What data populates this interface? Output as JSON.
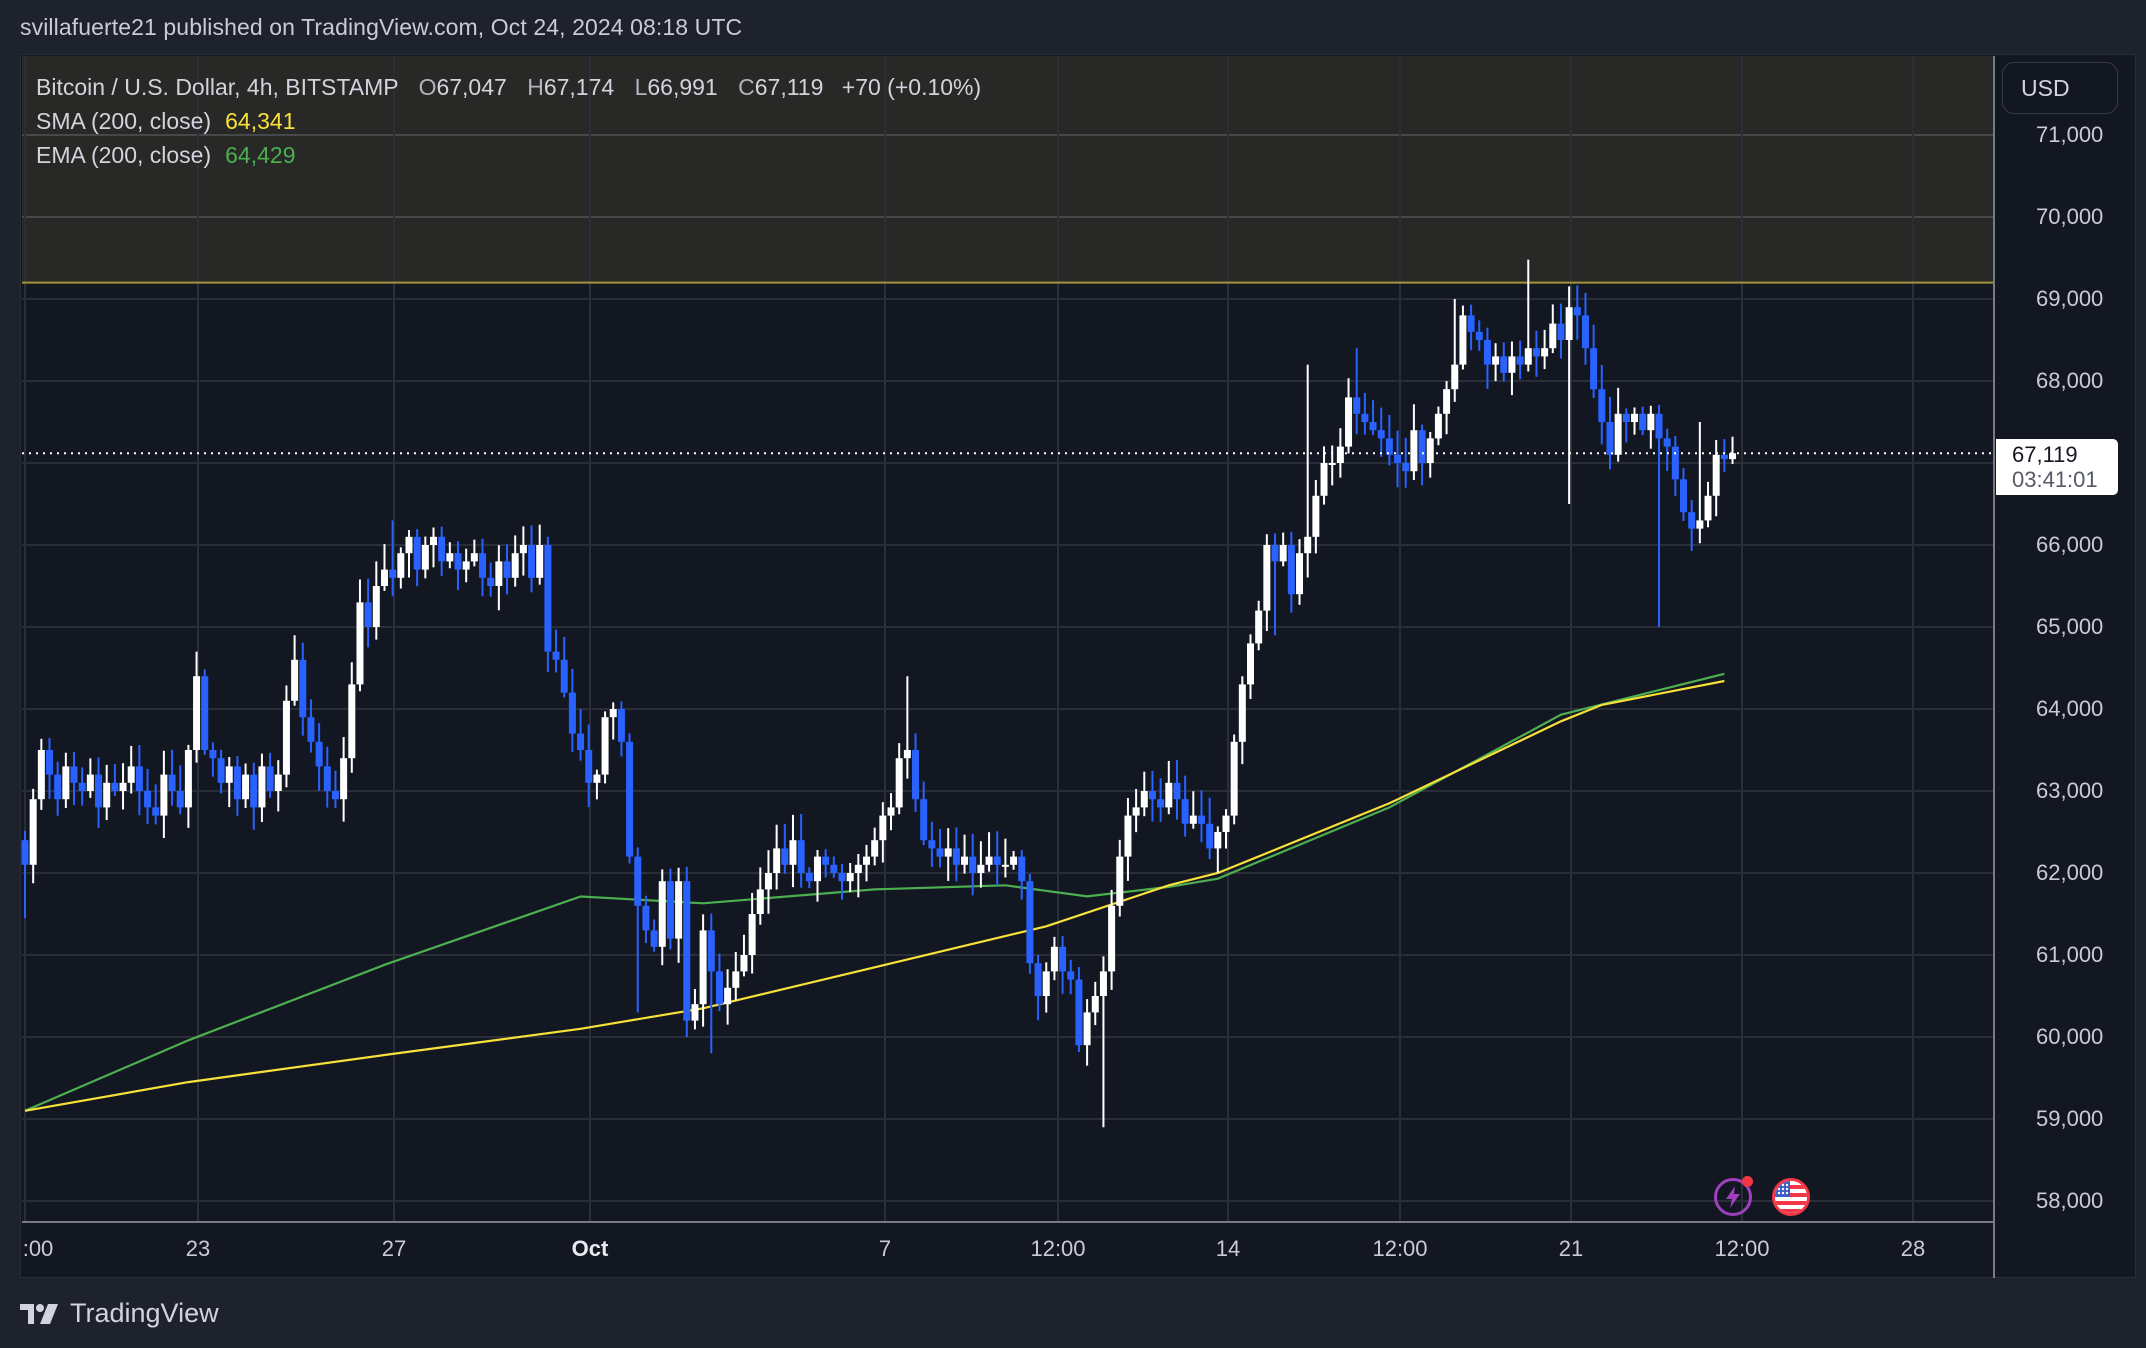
{
  "header": {
    "publish_text": "svillafuerte21 published on TradingView.com, Oct 24, 2024 08:18 UTC"
  },
  "legend": {
    "symbol": "Bitcoin / U.S. Dollar, 4h, BITSTAMP",
    "open_key": "O",
    "open": "67,047",
    "high_key": "H",
    "high": "67,174",
    "low_key": "L",
    "low": "66,991",
    "close_key": "C",
    "close": "67,119",
    "change": "+70 (+0.10%)",
    "sma_label": "SMA (200, close)",
    "sma_value": "64,341",
    "ema_label": "EMA (200, close)",
    "ema_value": "64,429"
  },
  "price_axis": {
    "currency_button": "USD",
    "labels": [
      "71,000",
      "70,000",
      "69,000",
      "68,000",
      "67,000",
      "66,000",
      "65,000",
      "64,000",
      "63,000",
      "62,000",
      "61,000",
      "60,000",
      "59,000",
      "58,000"
    ],
    "last_price": "67,119",
    "countdown": "03:41:01"
  },
  "time_axis": {
    "labels": [
      {
        "text": ":00",
        "bold": false
      },
      {
        "text": "23",
        "bold": false
      },
      {
        "text": "27",
        "bold": false
      },
      {
        "text": "Oct",
        "bold": true
      },
      {
        "text": "7",
        "bold": false
      },
      {
        "text": "12:00",
        "bold": false
      },
      {
        "text": "14",
        "bold": false
      },
      {
        "text": "12:00",
        "bold": false
      },
      {
        "text": "21",
        "bold": false
      },
      {
        "text": "12:00",
        "bold": false
      },
      {
        "text": "28",
        "bold": false
      }
    ]
  },
  "footer": {
    "brand": "TradingView"
  },
  "icons": {
    "event_1": "lightning-event-icon",
    "event_2": "us-flag-event-icon"
  },
  "colors": {
    "background": "#131722",
    "up_candle": "#ffffff",
    "down_candle": "#2962ff",
    "sma": "#f7e13a",
    "ema": "#4caf50",
    "resistance_line": "#a39339",
    "resistance_zone": "#282826",
    "grid": "#2a2e39"
  },
  "chart_data": {
    "type": "candlestick",
    "title": "Bitcoin / U.S. Dollar, 4h, BITSTAMP",
    "interval": "4h",
    "xlabel": "",
    "ylabel": "USD",
    "ylim": [
      57700,
      71700
    ],
    "grid": true,
    "legend_position": "top-left",
    "x_tick_labels": [
      ":00",
      "23",
      "27",
      "Oct",
      "7",
      "12:00",
      "14",
      "12:00",
      "21",
      "12:00",
      "28"
    ],
    "y_tick_labels": [
      71000,
      70000,
      69000,
      68000,
      67000,
      66000,
      65000,
      64000,
      63000,
      62000,
      61000,
      60000,
      59000,
      58000
    ],
    "ohlc_current": {
      "open": 67047,
      "high": 67174,
      "low": 66991,
      "close": 67119,
      "change": 70,
      "change_pct": 0.1
    },
    "resistance_zone": {
      "from": 69200,
      "to": 71700
    },
    "closes": [
      62100,
      62900,
      63500,
      63200,
      62900,
      63300,
      63100,
      63000,
      63200,
      62800,
      63100,
      63000,
      63100,
      63300,
      63000,
      62800,
      62700,
      63200,
      63000,
      62800,
      63500,
      64400,
      63500,
      63400,
      63100,
      63300,
      62900,
      63200,
      62800,
      63300,
      63000,
      63200,
      64100,
      64600,
      63900,
      63600,
      63300,
      63000,
      62900,
      63400,
      64300,
      65300,
      65000,
      65500,
      65700,
      65600,
      65900,
      66100,
      65700,
      66000,
      66100,
      65800,
      65900,
      65700,
      65800,
      65900,
      65600,
      65500,
      65800,
      65600,
      65900,
      66000,
      65600,
      66000,
      64700,
      64600,
      64200,
      63700,
      63500,
      63100,
      63200,
      63900,
      64000,
      63600,
      62200,
      61600,
      61300,
      61100,
      61900,
      61200,
      61900,
      60200,
      60400,
      61300,
      60800,
      60400,
      60600,
      60800,
      61000,
      61500,
      61800,
      62000,
      62300,
      62100,
      62400,
      62000,
      61900,
      62200,
      62100,
      62000,
      61900,
      62000,
      62100,
      62200,
      62400,
      62700,
      62800,
      63400,
      63500,
      62900,
      62400,
      62300,
      62200,
      62300,
      62100,
      62200,
      62000,
      62100,
      62200,
      62100,
      62100,
      62200,
      61900,
      60900,
      60500,
      60800,
      61100,
      60800,
      60700,
      59900,
      60300,
      60500,
      60800,
      61600,
      62200,
      62700,
      62800,
      63000,
      62900,
      62800,
      63100,
      62900,
      62600,
      62700,
      62600,
      62300,
      62500,
      62700,
      63600,
      64300,
      64800,
      65200,
      66000,
      65800,
      66000,
      65400,
      65900,
      66100,
      66600,
      67000,
      67000,
      67200,
      67800,
      67600,
      67500,
      67400,
      67300,
      67100,
      67000,
      66900,
      67400,
      67000,
      67300,
      67600,
      67900,
      68200,
      68800,
      68600,
      68500,
      68200,
      68300,
      68100,
      68300,
      68200,
      68400,
      68300,
      68400,
      68700,
      68500,
      68900,
      68800,
      68400,
      67900,
      67500,
      67100,
      67600,
      67500,
      67600,
      67400,
      67600,
      67300,
      67200,
      66800,
      66400,
      66200,
      66300,
      66600,
      67100,
      67047,
      67119
    ],
    "wick_extremes": [
      {
        "index": 0,
        "low": 61450
      },
      {
        "index": 21,
        "high": 64700
      },
      {
        "index": 33,
        "high": 64900
      },
      {
        "index": 45,
        "high": 66300
      },
      {
        "index": 64,
        "high": 66100
      },
      {
        "index": 75,
        "low": 60300
      },
      {
        "index": 81,
        "low": 60000
      },
      {
        "index": 84,
        "low": 59800
      },
      {
        "index": 108,
        "high": 64400
      },
      {
        "index": 132,
        "low": 58900
      },
      {
        "index": 153,
        "low": 64900
      },
      {
        "index": 157,
        "high": 68200
      },
      {
        "index": 163,
        "high": 68400
      },
      {
        "index": 175,
        "high": 69000
      },
      {
        "index": 184,
        "high": 69480
      },
      {
        "index": 189,
        "low": 66500
      },
      {
        "index": 200,
        "low": 65000
      },
      {
        "index": 205,
        "high": 67500
      }
    ],
    "sma_200": [
      [
        0,
        59100
      ],
      [
        20,
        59450
      ],
      [
        44,
        59780
      ],
      [
        68,
        60100
      ],
      [
        83,
        60350
      ],
      [
        104,
        60850
      ],
      [
        125,
        61350
      ],
      [
        140,
        61850
      ],
      [
        146,
        62000
      ],
      [
        167,
        62850
      ],
      [
        188,
        63850
      ],
      [
        193,
        64050
      ],
      [
        208,
        64341
      ]
    ],
    "ema_200": [
      [
        0,
        59100
      ],
      [
        20,
        59960
      ],
      [
        44,
        60880
      ],
      [
        68,
        61714
      ],
      [
        83,
        61630
      ],
      [
        104,
        61800
      ],
      [
        120,
        61850
      ],
      [
        130,
        61715
      ],
      [
        140,
        61830
      ],
      [
        146,
        61930
      ],
      [
        167,
        62800
      ],
      [
        188,
        63930
      ],
      [
        208,
        64429
      ]
    ]
  }
}
